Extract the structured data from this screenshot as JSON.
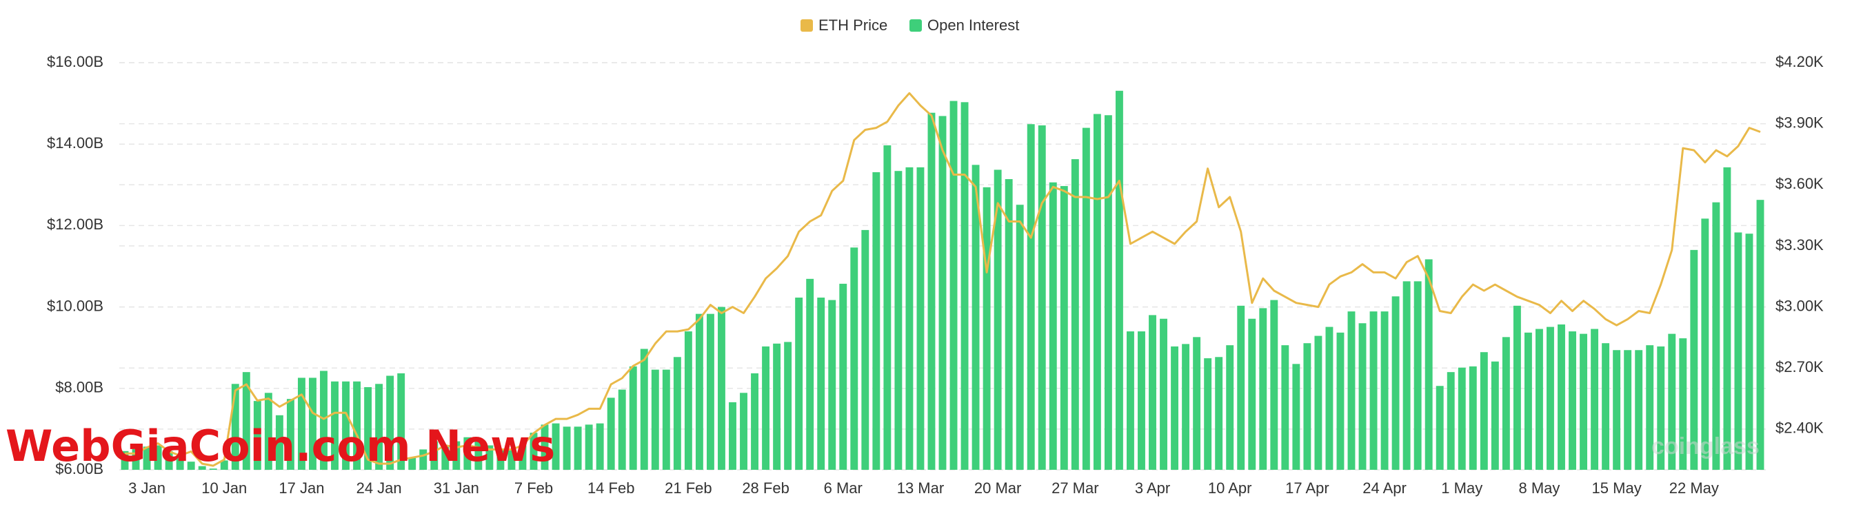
{
  "chart_data": {
    "type": "bar",
    "legend": "top",
    "grid": true,
    "watermark": "WebGiaCoin.com News",
    "brand": "coinglass",
    "categories": [
      null,
      null,
      "3 Jan",
      null,
      null,
      null,
      null,
      null,
      null,
      "10 Jan",
      null,
      null,
      null,
      null,
      null,
      null,
      "17 Jan",
      null,
      null,
      null,
      null,
      null,
      null,
      "24 Jan",
      null,
      null,
      null,
      null,
      null,
      null,
      "31 Jan",
      null,
      null,
      null,
      null,
      null,
      null,
      "7 Feb",
      null,
      null,
      null,
      null,
      null,
      null,
      "14 Feb",
      null,
      null,
      null,
      null,
      null,
      null,
      "21 Feb",
      null,
      null,
      null,
      null,
      null,
      null,
      "28 Feb",
      null,
      null,
      null,
      null,
      null,
      null,
      "6 Mar",
      null,
      null,
      null,
      null,
      null,
      null,
      "13 Mar",
      null,
      null,
      null,
      null,
      null,
      null,
      "20 Mar",
      null,
      null,
      null,
      null,
      null,
      null,
      "27 Mar",
      null,
      null,
      null,
      null,
      null,
      null,
      "3 Apr",
      null,
      null,
      null,
      null,
      null,
      null,
      "10 Apr",
      null,
      null,
      null,
      null,
      null,
      null,
      "17 Apr",
      null,
      null,
      null,
      null,
      null,
      null,
      "24 Apr",
      null,
      null,
      null,
      null,
      null,
      null,
      "1 May",
      null,
      null,
      null,
      null,
      null,
      null,
      "8 May",
      null,
      null,
      null,
      null,
      null,
      null,
      "15 May",
      null,
      null,
      null,
      null,
      null,
      null,
      "22 May",
      null,
      null,
      null,
      null,
      null,
      null
    ],
    "series": [
      {
        "name": "ETH Price",
        "type": "line",
        "axis": "y2",
        "color": "#e9b949",
        "values": [
          2.28,
          2.28,
          2.31,
          2.33,
          2.29,
          2.27,
          2.29,
          2.23,
          2.22,
          2.25,
          2.59,
          2.62,
          2.54,
          2.55,
          2.51,
          2.54,
          2.57,
          2.48,
          2.45,
          2.48,
          2.48,
          2.37,
          2.25,
          2.23,
          2.23,
          2.25,
          2.26,
          2.27,
          2.29,
          2.32,
          2.31,
          2.32,
          2.31,
          2.3,
          2.3,
          2.3,
          2.32,
          2.38,
          2.42,
          2.45,
          2.45,
          2.47,
          2.5,
          2.5,
          2.62,
          2.65,
          2.71,
          2.74,
          2.82,
          2.88,
          2.88,
          2.89,
          2.94,
          3.01,
          2.97,
          3.0,
          2.97,
          3.05,
          3.14,
          3.19,
          3.25,
          3.37,
          3.42,
          3.45,
          3.57,
          3.62,
          3.82,
          3.87,
          3.88,
          3.91,
          3.99,
          4.05,
          3.99,
          3.94,
          3.77,
          3.65,
          3.65,
          3.59,
          3.17,
          3.51,
          3.42,
          3.42,
          3.34,
          3.51,
          3.59,
          3.57,
          3.54,
          3.54,
          3.53,
          3.54,
          3.62,
          3.31,
          3.34,
          3.37,
          3.34,
          3.31,
          3.37,
          3.42,
          3.68,
          3.49,
          3.54,
          3.37,
          3.02,
          3.14,
          3.08,
          3.05,
          3.02,
          3.01,
          3.0,
          3.11,
          3.15,
          3.17,
          3.21,
          3.17,
          3.17,
          3.14,
          3.22,
          3.25,
          3.14,
          2.98,
          2.97,
          3.05,
          3.11,
          3.08,
          3.11,
          3.08,
          3.05,
          3.03,
          3.01,
          2.97,
          3.03,
          2.98,
          3.03,
          2.99,
          2.94,
          2.91,
          2.94,
          2.98,
          2.97,
          3.11,
          3.28,
          3.78,
          3.77,
          3.71,
          3.77,
          3.74,
          3.79,
          3.88,
          3.86
        ]
      },
      {
        "name": "Open Interest",
        "type": "bar",
        "axis": "y",
        "color": "#3ecf7a",
        "values": [
          6.46,
          6.51,
          6.57,
          6.6,
          6.46,
          6.34,
          6.2,
          6.09,
          6.03,
          6.23,
          8.11,
          8.4,
          7.69,
          7.89,
          7.34,
          7.74,
          8.26,
          8.26,
          8.43,
          8.17,
          8.17,
          8.17,
          8.03,
          8.11,
          8.31,
          8.37,
          6.3,
          6.5,
          6.7,
          6.6,
          6.7,
          6.8,
          6.7,
          6.6,
          6.5,
          6.5,
          6.6,
          6.91,
          7.11,
          7.14,
          7.06,
          7.06,
          7.11,
          7.14,
          7.77,
          7.97,
          8.54,
          8.97,
          8.46,
          8.46,
          8.77,
          9.4,
          9.83,
          9.83,
          10.0,
          7.66,
          7.89,
          8.37,
          9.03,
          9.1,
          9.14,
          10.23,
          10.69,
          10.23,
          10.17,
          10.57,
          11.46,
          11.89,
          13.31,
          13.97,
          13.34,
          13.43,
          13.43,
          14.77,
          14.69,
          15.06,
          15.03,
          13.49,
          12.94,
          13.37,
          13.14,
          12.51,
          14.49,
          14.46,
          13.06,
          12.97,
          13.63,
          14.4,
          14.74,
          14.71,
          15.31,
          9.4,
          9.4,
          9.8,
          9.71,
          9.03,
          9.09,
          9.26,
          8.74,
          8.77,
          9.06,
          10.03,
          9.71,
          9.97,
          10.17,
          9.06,
          8.6,
          9.11,
          9.29,
          9.51,
          9.37,
          9.89,
          9.6,
          9.89,
          9.89,
          10.26,
          10.63,
          10.63,
          11.17,
          8.06,
          8.4,
          8.51,
          8.54,
          8.89,
          8.66,
          9.26,
          10.03,
          9.37,
          9.46,
          9.51,
          9.57,
          9.4,
          9.34,
          9.46,
          9.11,
          8.94,
          8.94,
          8.94,
          9.06,
          9.03,
          9.34,
          9.23,
          11.4,
          12.17,
          12.57,
          13.43,
          11.83,
          11.8,
          12.63
        ]
      }
    ],
    "ylim": [
      6,
      16
    ],
    "yticks": [
      {
        "value": 6,
        "label": "$6.00B"
      },
      {
        "value": 8,
        "label": "$8.00B"
      },
      {
        "value": 10,
        "label": "$10.00B"
      },
      {
        "value": 12,
        "label": "$12.00B"
      },
      {
        "value": 14,
        "label": "$14.00B"
      },
      {
        "value": 16,
        "label": "$16.00B"
      }
    ],
    "y2lim": [
      2.2,
      4.2
    ],
    "y2ticks": [
      {
        "value": 2.4,
        "label": "$2.40K"
      },
      {
        "value": 2.7,
        "label": "$2.70K"
      },
      {
        "value": 3.0,
        "label": "$3.00K"
      },
      {
        "value": 3.3,
        "label": "$3.30K"
      },
      {
        "value": 3.6,
        "label": "$3.60K"
      },
      {
        "value": 3.9,
        "label": "$3.90K"
      },
      {
        "value": 4.2,
        "label": "$4.20K"
      }
    ]
  }
}
